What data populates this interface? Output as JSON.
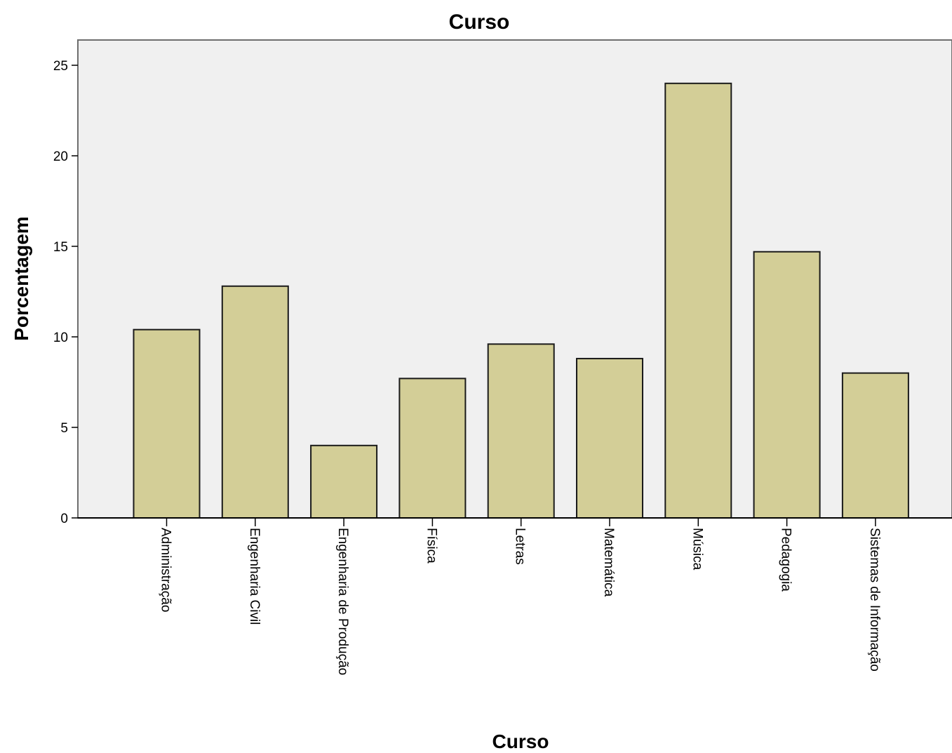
{
  "chart_data": {
    "type": "bar",
    "title": "Curso",
    "xlabel": "Curso",
    "ylabel": "Porcentagem",
    "categories": [
      "Administração",
      "Engenharia Civil",
      "Engenharia de Produção",
      "Física",
      "Letras",
      "Matemática",
      "Música",
      "Pedagogia",
      "Sistemas de Informação"
    ],
    "values": [
      10.4,
      12.8,
      4.0,
      7.7,
      9.6,
      8.8,
      24.0,
      14.7,
      8.0
    ],
    "yticks": [
      0,
      5,
      10,
      15,
      20,
      25
    ],
    "ylim": [
      0,
      26.3
    ],
    "grid": false,
    "legend": "none",
    "colors": {
      "bar_fill": "#d3ce97",
      "bar_stroke": "#1a1a1a",
      "plot_background": "#f0f0f0",
      "axis": "#000000",
      "frame": "#6e6e6e"
    }
  }
}
